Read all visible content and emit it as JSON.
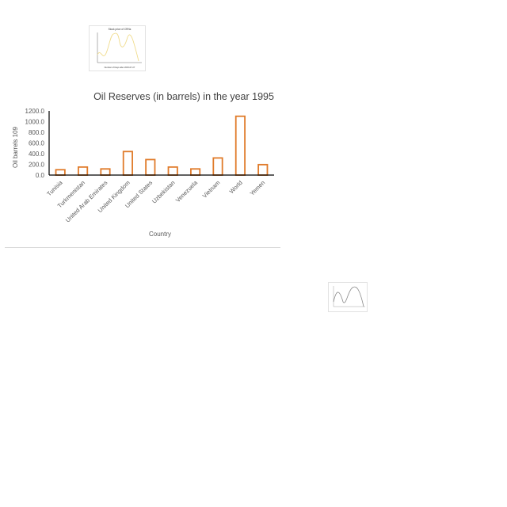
{
  "chart_data": [
    {
      "type": "bar",
      "title": "Oil Reserves (in barrels) in the year 1995",
      "xlabel": "Country",
      "ylabel": "Oil barrels 109",
      "categories": [
        "Tunisia",
        "Turkmenistan",
        "United Arab Emirates",
        "United Kingdom",
        "United States",
        "Uzbekistan",
        "Venezuela",
        "Vietnam",
        "World",
        "Yemen"
      ],
      "values": [
        100,
        150,
        115,
        440,
        290,
        150,
        115,
        320,
        1100,
        195
      ],
      "ylim": [
        0,
        1200
      ],
      "yticks": [
        "0.0",
        "200.0",
        "400.0",
        "600.0",
        "800.0",
        "1000.0",
        "1200.0"
      ],
      "grid": false,
      "bar_color": "#e07b2a",
      "bar_style": "outline"
    },
    {
      "type": "line",
      "title": "Stock price of CRNs",
      "xlabel": "Number of Days after 2015-07-27",
      "ylabel": "",
      "line_color": "#f0dc8c"
    },
    {
      "type": "line",
      "title": "",
      "line_color": "#8a8a8a"
    }
  ]
}
